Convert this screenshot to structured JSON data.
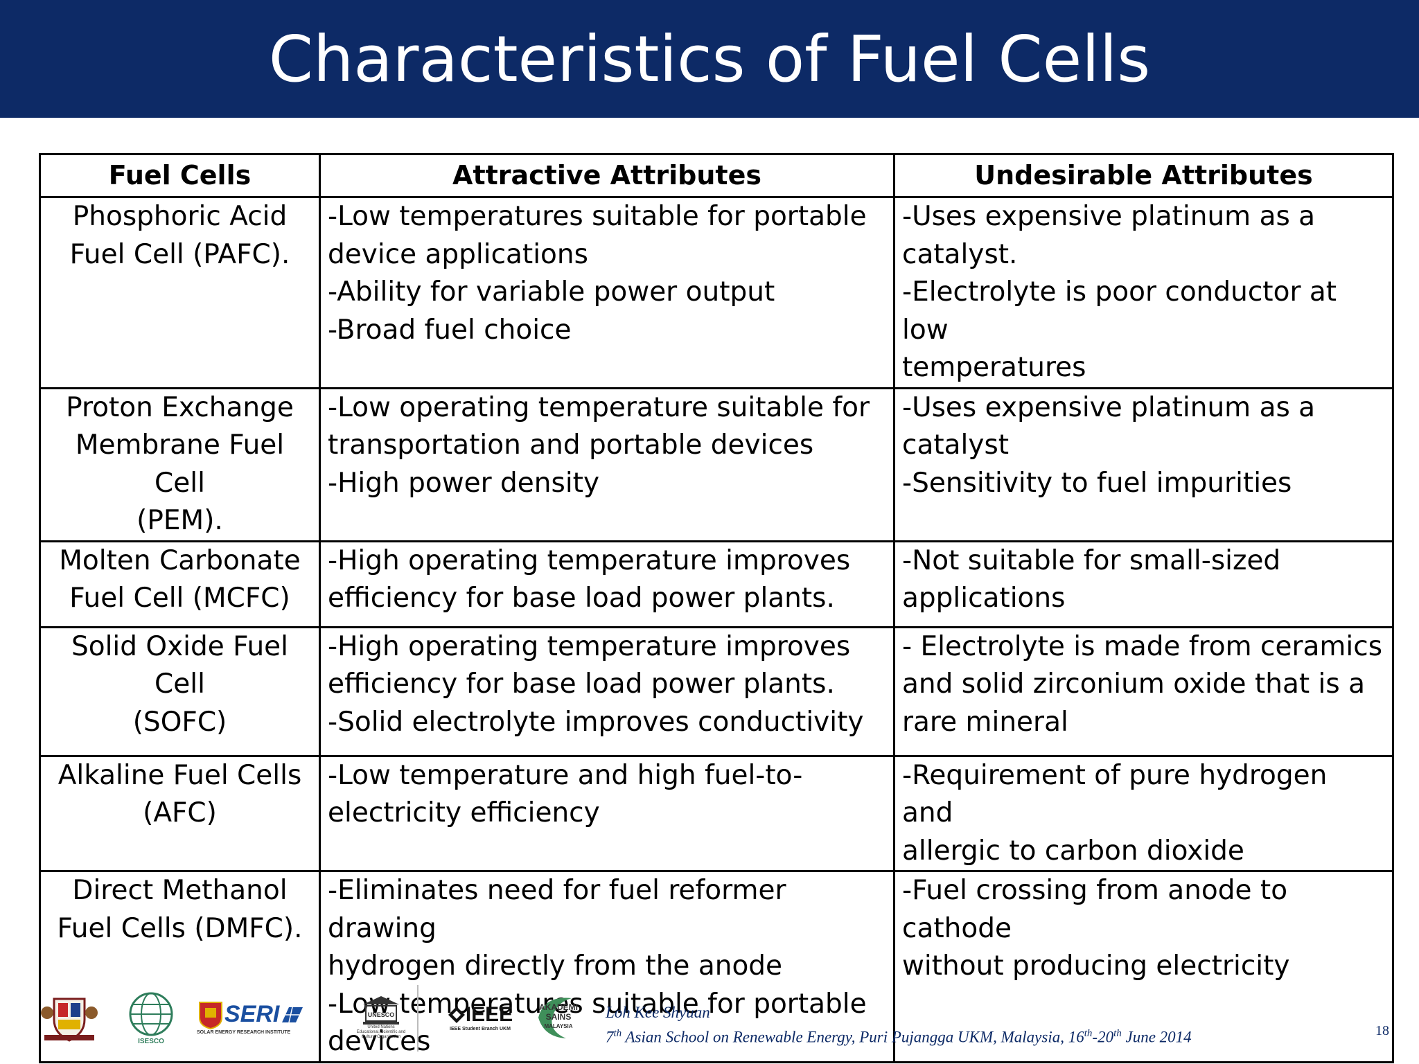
{
  "slide": {
    "title": "Characteristics of Fuel Cells",
    "page_number": "18"
  },
  "table": {
    "headers": [
      "Fuel Cells",
      "Attractive Attributes",
      "Undesirable Attributes"
    ],
    "rows": [
      {
        "name": [
          "Phosphoric Acid",
          "Fuel Cell (PAFC)."
        ],
        "attractive": [
          "-Low temperatures suitable for portable",
          "device applications",
          "-Ability for variable power output",
          "-Broad fuel choice"
        ],
        "undesirable": [
          "-Uses expensive platinum as a",
          "catalyst.",
          "-Electrolyte is poor conductor at low",
          "temperatures"
        ]
      },
      {
        "name": [
          "Proton Exchange",
          "Membrane Fuel Cell",
          "(PEM)."
        ],
        "attractive": [
          "-Low operating temperature suitable for",
          "transportation and portable devices",
          "-High power density"
        ],
        "undesirable": [
          "-Uses expensive platinum as a",
          "catalyst",
          "-Sensitivity to fuel impurities"
        ]
      },
      {
        "name": [
          "Molten Carbonate",
          "Fuel Cell (MCFC)"
        ],
        "attractive": [
          "-High operating temperature improves",
          "efficiency for base load power plants."
        ],
        "undesirable": [
          "-Not suitable for small-sized",
          "applications"
        ]
      },
      {
        "name": [
          "Solid Oxide Fuel Cell",
          "(SOFC)"
        ],
        "attractive": [
          "-High operating temperature improves",
          "efficiency for base load power plants.",
          "-Solid electrolyte improves conductivity"
        ],
        "undesirable": [
          "- Electrolyte is made from ceramics",
          "and solid zirconium oxide that is a",
          "rare mineral"
        ]
      },
      {
        "name": [
          "Alkaline Fuel Cells",
          "(AFC)"
        ],
        "attractive": [
          "-Low temperature and high fuel-to-",
          "electricity efficiency"
        ],
        "undesirable": [
          "-Requirement of pure hydrogen and",
          "allergic to carbon dioxide"
        ]
      },
      {
        "name": [
          "Direct Methanol",
          "Fuel Cells (DMFC)."
        ],
        "attractive": [
          "-Eliminates need for fuel reformer drawing",
          "hydrogen directly from the anode",
          "-Low temperatures suitable for portable",
          "devices"
        ],
        "undesirable": [
          "-Fuel crossing from anode to cathode",
          "without producing electricity"
        ]
      }
    ]
  },
  "footer": {
    "author": "Loh Kee Shyuan",
    "event_prefix_num": "7",
    "event_prefix_sup": "th",
    "event_main": " Asian School on Renewable Energy, Puri Pujangga UKM, Malaysia, 16",
    "event_date_sup1": "th",
    "event_date_mid": "-20",
    "event_date_sup2": "th",
    "event_date_end": " June 2014",
    "logos": {
      "seri_name": "SERI",
      "seri_sub": "SOLAR ENERGY RESEARCH INSTITUTE",
      "unesco_name": "UNESCO",
      "unesco_sub": [
        "United Nations",
        "Educational, Scientific and",
        "Cultural Organization"
      ],
      "ieee_name": "IEEE",
      "ieee_sub": "IEEE Student Branch UKM",
      "akademi_lines": [
        "AKADEMI",
        "SAINS",
        "MALAYSIA"
      ],
      "isesco_name": "ISESCO"
    }
  },
  "colors": {
    "title_bar": "#0d2a66",
    "footer_text": "#0d2a66",
    "border": "#000000"
  }
}
